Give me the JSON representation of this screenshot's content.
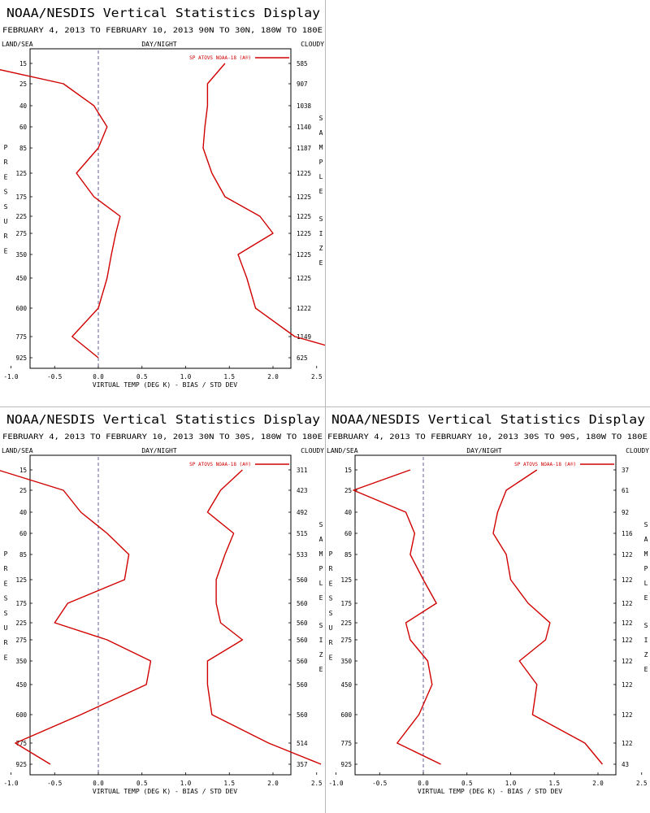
{
  "chart_data": [
    {
      "type": "line",
      "title": "NOAA/NESDIS Vertical Statistics Display",
      "subtitle": "FEBRUARY 4, 2013 TO FEBRUARY 10, 2013 90N TO 30N, 180W TO 180E",
      "header_left": "LAND/SEA",
      "header_center": "DAY/NIGHT",
      "header_right": "CLOUDY",
      "xlabel": "VIRTUAL TEMP (DEG K) - BIAS / STD DEV",
      "ylabel": "PRESSURE",
      "right_axis_label": "SAMPLE SIZE",
      "xlim": [
        -1.5,
        4.5
      ],
      "x_ticks": [
        "-1.0",
        "-0.5",
        "0.0",
        "0.5",
        "1.0",
        "1.5",
        "2.0",
        "2.5",
        "3.0",
        "3.5",
        "4.0"
      ],
      "pressure_levels": [
        "15",
        "25",
        "40",
        "60",
        "85",
        "125",
        "175",
        "225",
        "275",
        "350",
        "450",
        "600",
        "775",
        "925"
      ],
      "sample_sizes": [
        "585",
        "907",
        "1038",
        "1140",
        "1187",
        "1225",
        "1225",
        "1225",
        "1225",
        "1225",
        "1225",
        "1222",
        "1149",
        "625"
      ],
      "legend": "SP ATOVS NOAA-18 (A®)",
      "series": [
        {
          "name": "SP ATOVS NOAA-18 (A®)",
          "role": "bias",
          "values": [
            -1.45,
            -0.4,
            -0.05,
            0.1,
            0.0,
            -0.25,
            -0.05,
            0.25,
            0.2,
            0.15,
            0.1,
            0.0,
            -0.3,
            0.0
          ]
        },
        {
          "name": "SP ATOVS NOAA-18 (A®)",
          "role": "std dev",
          "values": [
            1.45,
            1.25,
            1.25,
            1.22,
            1.2,
            1.3,
            1.45,
            1.85,
            2.0,
            1.6,
            1.7,
            1.8,
            2.25,
            3.1
          ]
        }
      ],
      "grid": false,
      "legend_position": "top-right"
    },
    {
      "type": "line",
      "title": "NOAA/NESDIS Vertical Statistics Display",
      "subtitle": "FEBRUARY 4, 2013 TO FEBRUARY 10, 2013 30N TO 30S, 180W TO 180E",
      "header_left": "LAND/SEA",
      "header_center": "DAY/NIGHT",
      "header_right": "CLOUDY",
      "xlabel": "VIRTUAL TEMP (DEG K) - BIAS / STD DEV",
      "ylabel": "PRESSURE",
      "right_axis_label": "SAMPLE SIZE",
      "xlim": [
        -1.5,
        4.5
      ],
      "x_ticks": [
        "-1.0",
        "-0.5",
        "0.0",
        "0.5",
        "1.0",
        "1.5",
        "2.0",
        "2.5",
        "3.0",
        "3.5",
        "4.0"
      ],
      "pressure_levels": [
        "15",
        "25",
        "40",
        "60",
        "85",
        "125",
        "175",
        "225",
        "275",
        "350",
        "450",
        "600",
        "775",
        "925"
      ],
      "sample_sizes": [
        "311",
        "423",
        "492",
        "515",
        "533",
        "560",
        "560",
        "560",
        "560",
        "560",
        "560",
        "560",
        "514",
        "357"
      ],
      "legend": "SP ATOVS NOAA-18 (A®)",
      "series": [
        {
          "name": "SP ATOVS NOAA-18 (A®)",
          "role": "bias",
          "values": [
            -1.15,
            -0.4,
            -0.2,
            0.1,
            0.35,
            0.3,
            -0.35,
            -0.5,
            0.1,
            0.6,
            0.55,
            -0.2,
            -0.95,
            -0.55
          ]
        },
        {
          "name": "SP ATOVS NOAA-18 (A®)",
          "role": "std dev",
          "values": [
            1.65,
            1.4,
            1.25,
            1.55,
            1.45,
            1.35,
            1.35,
            1.4,
            1.65,
            1.25,
            1.25,
            1.3,
            1.95,
            2.55
          ]
        }
      ],
      "grid": false,
      "legend_position": "top-right"
    },
    {
      "type": "line",
      "title": "NOAA/NESDIS Vertical Statistics Display",
      "subtitle": "FEBRUARY 4, 2013 TO FEBRUARY 10, 2013 30S TO 90S, 180W TO 180E",
      "header_left": "LAND/SEA",
      "header_center": "DAY/NIGHT",
      "header_right": "CLOUDY",
      "xlabel": "VIRTUAL TEMP (DEG K) - BIAS / STD DEV",
      "ylabel": "PRESSURE",
      "right_axis_label": "SAMPLE SIZE",
      "xlim": [
        -1.5,
        4.5
      ],
      "x_ticks": [
        "-1.0",
        "-0.5",
        "0.0",
        "0.5",
        "1.0",
        "1.5",
        "2.0",
        "2.5",
        "3.0",
        "3.5",
        "4.0"
      ],
      "pressure_levels": [
        "15",
        "25",
        "40",
        "60",
        "85",
        "125",
        "175",
        "225",
        "275",
        "350",
        "450",
        "600",
        "775",
        "925"
      ],
      "sample_sizes": [
        "37",
        "61",
        "92",
        "116",
        "122",
        "122",
        "122",
        "122",
        "122",
        "122",
        "122",
        "122",
        "122",
        "43"
      ],
      "legend": "SP ATOVS NOAA-18 (A®)",
      "series": [
        {
          "name": "SP ATOVS NOAA-18 (A®)",
          "role": "bias",
          "values": [
            -0.15,
            -0.8,
            -0.2,
            -0.1,
            -0.15,
            0.0,
            0.15,
            -0.2,
            -0.15,
            0.05,
            0.1,
            -0.05,
            -0.3,
            0.2
          ]
        },
        {
          "name": "SP ATOVS NOAA-18 (A®)",
          "role": "std dev",
          "values": [
            1.3,
            0.95,
            0.85,
            0.8,
            0.95,
            1.0,
            1.2,
            1.45,
            1.4,
            1.1,
            1.3,
            1.25,
            1.85,
            2.05
          ]
        }
      ],
      "grid": false,
      "legend_position": "top-right"
    }
  ]
}
